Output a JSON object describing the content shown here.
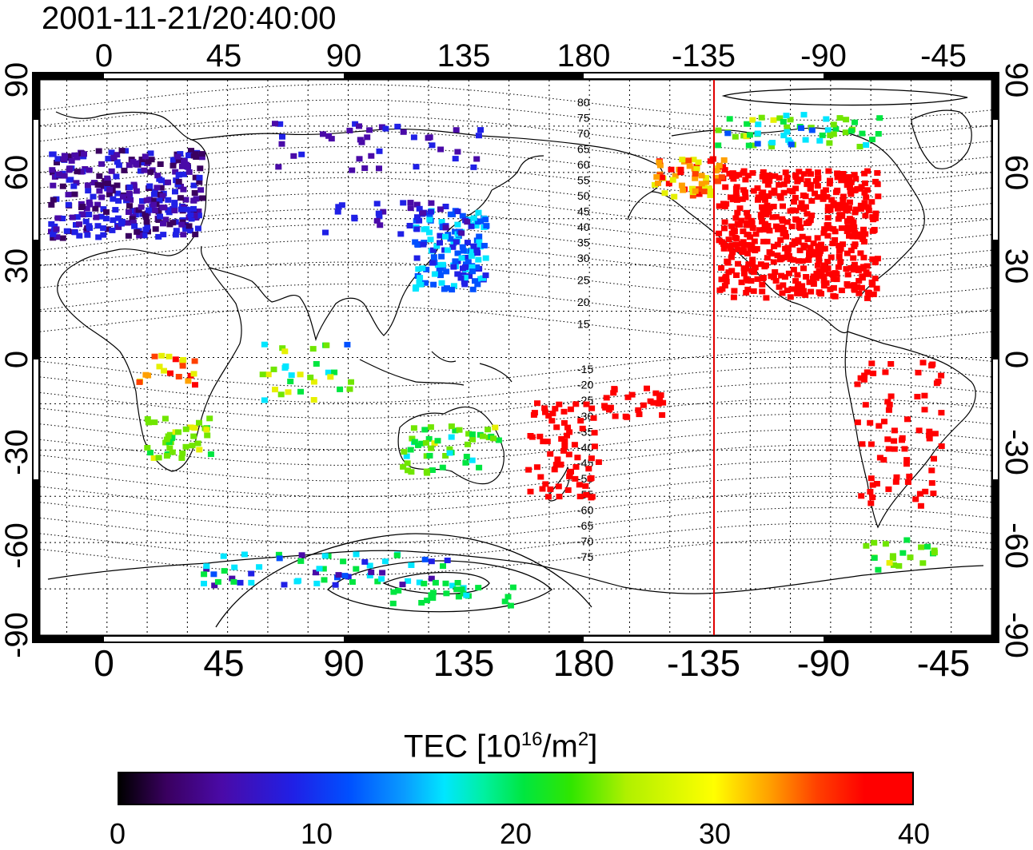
{
  "timestamp": "2001-11-21/20:40:00",
  "map": {
    "top_lon_labels": [
      "0",
      "45",
      "90",
      "135",
      "180",
      "-135",
      "-90",
      "-45"
    ],
    "bottom_lon_labels": [
      "0",
      "45",
      "90",
      "135",
      "180",
      "-135",
      "-90",
      "-45"
    ],
    "left_lat_labels": [
      "90",
      "60",
      "30",
      "0",
      "-30",
      "-60",
      "-90"
    ],
    "right_lat_labels": [
      "90",
      "60",
      "30",
      "0",
      "-30",
      "-60",
      "-90"
    ],
    "lon_range": [
      -25,
      330
    ],
    "lat_range": [
      -90,
      90
    ],
    "grid": true,
    "terminator_line_lon": -130,
    "terminator_line_color": "#e00000",
    "contour_labels_north": [
      "80",
      "75",
      "70",
      "65",
      "60",
      "55",
      "50",
      "45",
      "40",
      "35",
      "30",
      "25",
      "20",
      "15"
    ],
    "contour_labels_south": [
      "-15",
      "-20",
      "-25",
      "-30",
      "-35",
      "-40",
      "-45",
      "-50",
      "-55",
      "-60",
      "-65",
      "-70",
      "-75"
    ]
  },
  "colorbar": {
    "title_main": "TEC  [10",
    "title_exp1": "16",
    "title_mid": "/m",
    "title_exp2": "2",
    "title_end": "]",
    "ticks": [
      "0",
      "10",
      "20",
      "30",
      "40"
    ],
    "range": [
      0,
      40
    ]
  }
}
